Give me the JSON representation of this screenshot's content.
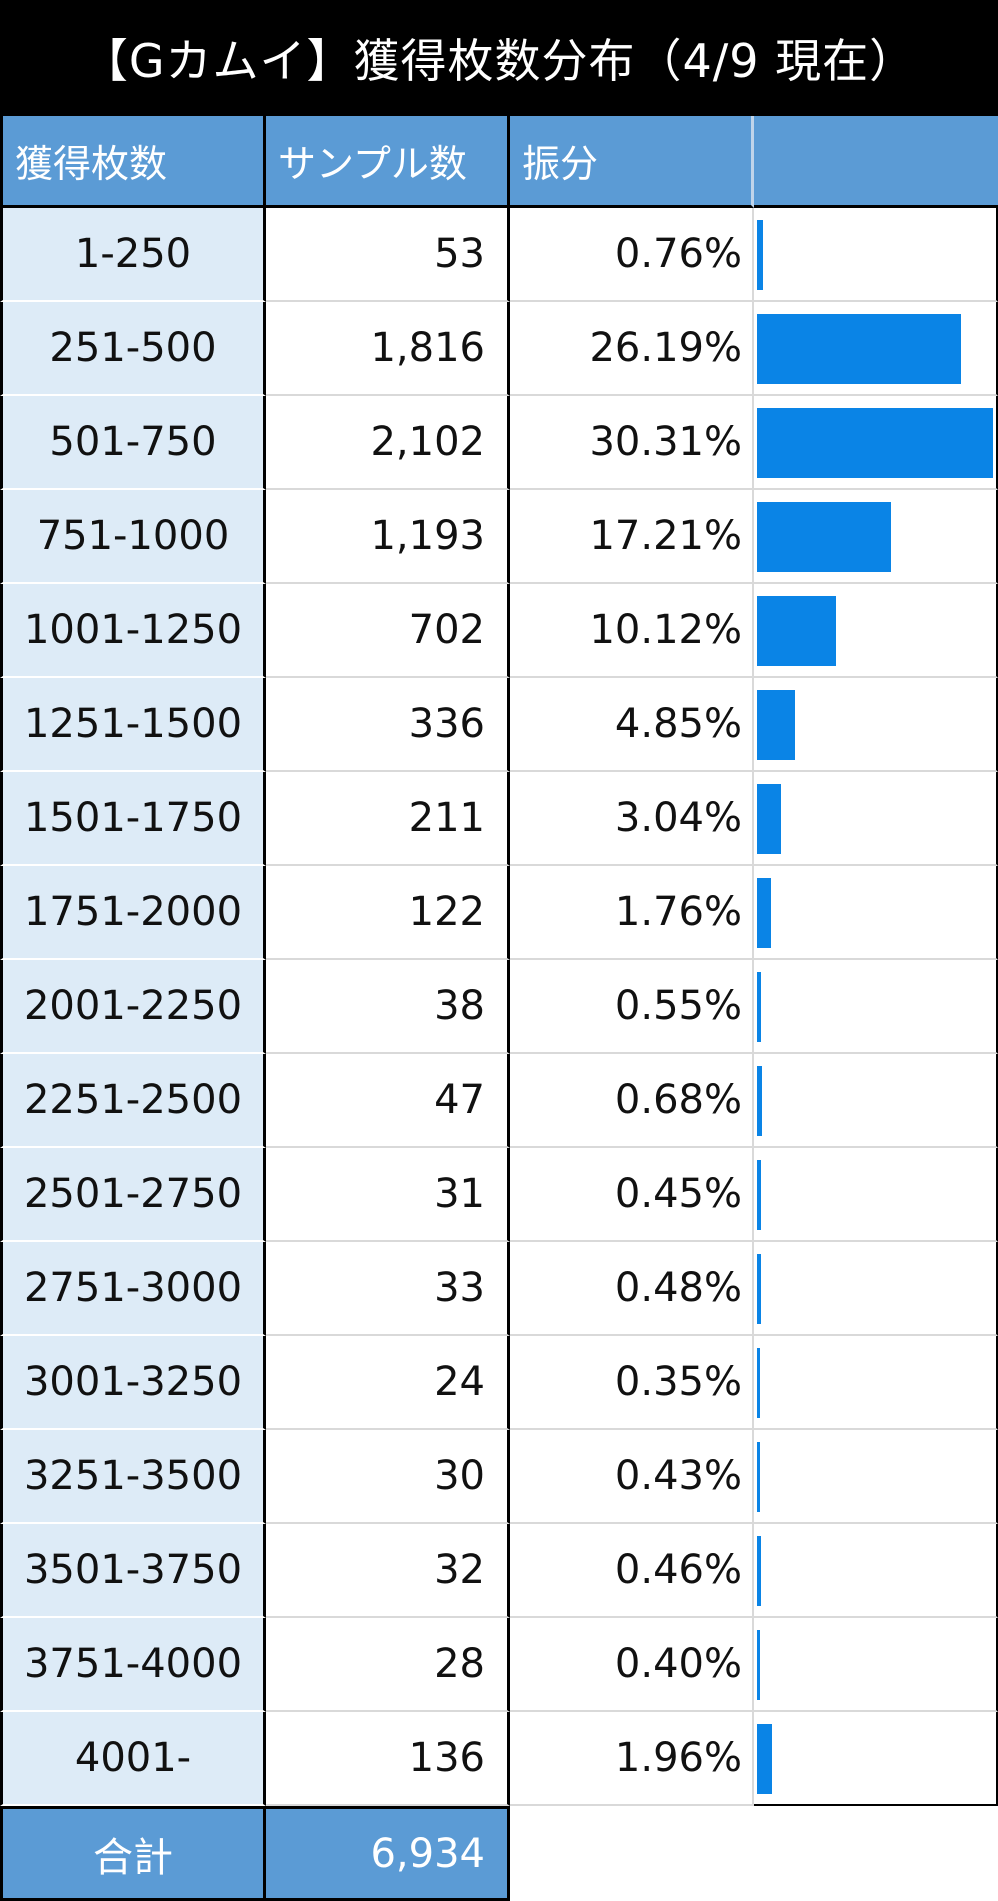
{
  "title": "【Gカムイ】獲得枚数分布（4/9 現在）",
  "headers": [
    "獲得枚数",
    "サンプル数",
    "振分",
    ""
  ],
  "chart_data": {
    "type": "table",
    "columns": [
      "獲得枚数",
      "サンプル数",
      "振分"
    ],
    "rows": [
      {
        "range": "1-250",
        "samples": "53",
        "percent": "0.76%",
        "value": 0.76
      },
      {
        "range": "251-500",
        "samples": "1,816",
        "percent": "26.19%",
        "value": 26.19
      },
      {
        "range": "501-750",
        "samples": "2,102",
        "percent": "30.31%",
        "value": 30.31
      },
      {
        "range": "751-1000",
        "samples": "1,193",
        "percent": "17.21%",
        "value": 17.21
      },
      {
        "range": "1001-1250",
        "samples": "702",
        "percent": "10.12%",
        "value": 10.12
      },
      {
        "range": "1251-1500",
        "samples": "336",
        "percent": "4.85%",
        "value": 4.85
      },
      {
        "range": "1501-1750",
        "samples": "211",
        "percent": "3.04%",
        "value": 3.04
      },
      {
        "range": "1751-2000",
        "samples": "122",
        "percent": "1.76%",
        "value": 1.76
      },
      {
        "range": "2001-2250",
        "samples": "38",
        "percent": "0.55%",
        "value": 0.55
      },
      {
        "range": "2251-2500",
        "samples": "47",
        "percent": "0.68%",
        "value": 0.68
      },
      {
        "range": "2501-2750",
        "samples": "31",
        "percent": "0.45%",
        "value": 0.45
      },
      {
        "range": "2751-3000",
        "samples": "33",
        "percent": "0.48%",
        "value": 0.48
      },
      {
        "range": "3001-3250",
        "samples": "24",
        "percent": "0.35%",
        "value": 0.35
      },
      {
        "range": "3251-3500",
        "samples": "30",
        "percent": "0.43%",
        "value": 0.43
      },
      {
        "range": "3501-3750",
        "samples": "32",
        "percent": "0.46%",
        "value": 0.46
      },
      {
        "range": "3751-4000",
        "samples": "28",
        "percent": "0.40%",
        "value": 0.4
      },
      {
        "range": "4001-",
        "samples": "136",
        "percent": "1.96%",
        "value": 1.96
      }
    ],
    "total_label": "合計",
    "total_value": "6,934",
    "bar_max": 30.31,
    "bar_color": "#0a84e6"
  },
  "colors": {
    "header_bg": "#5b9bd5",
    "range_col_bg": "#ddebf7",
    "title_bg": "#000000"
  }
}
